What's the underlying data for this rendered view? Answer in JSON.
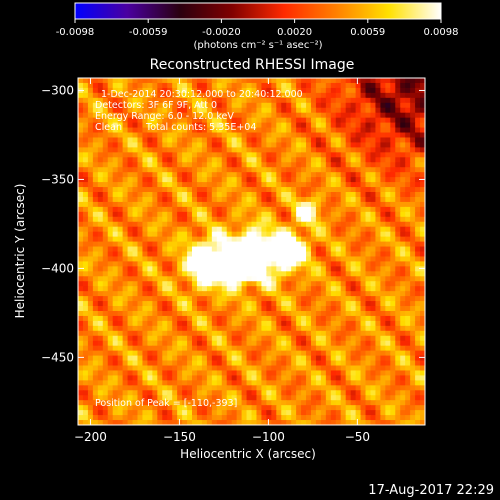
{
  "chart_data": {
    "type": "heatmap",
    "title": "Reconstructed RHESSI Image",
    "xlabel": "Heliocentric X (arcsec)",
    "ylabel": "Heliocentric Y (arcsec)",
    "xlim": [
      -207,
      -12
    ],
    "ylim": [
      -488,
      -293
    ],
    "x_ticks": [
      -200,
      -150,
      -100,
      -50
    ],
    "y_ticks": [
      -300,
      -350,
      -400,
      -450
    ],
    "colorbar": {
      "min": -0.0098,
      "max": 0.0098,
      "ticks": [
        "-0.0098",
        "-0.0059",
        "-0.0020",
        "0.0020",
        "0.0059",
        "0.0098"
      ],
      "units": "(photons cm⁻² s⁻¹ asec⁻²)",
      "colormap": [
        "#0000ff",
        "#4a00a0",
        "#2a0010",
        "#800000",
        "#ff2a00",
        "#ff8000",
        "#ffe000",
        "#ffffff"
      ]
    },
    "annotations": {
      "time_range": "1-Dec-2014 20:30:12.000 to 20:40:12.000",
      "detectors": "Detectors: 3F 6F 9F, Att 0",
      "energy_range": "Energy Range: 6.0 - 12.0 keV",
      "clean": "Clean",
      "total_counts": "Total counts: 5.35E+04",
      "peak_position": "Position of Peak = [-110,-393]"
    },
    "sources": [
      {
        "x": -133,
        "y": -397,
        "sigma": 9,
        "amplitude": 0.0098
      },
      {
        "x": -108,
        "y": -393,
        "sigma": 10,
        "amplitude": 0.0098
      },
      {
        "x": -88,
        "y": -390,
        "sigma": 7,
        "amplitude": 0.0085
      },
      {
        "x": -78,
        "y": -368,
        "sigma": 5,
        "amplitude": 0.006
      },
      {
        "x": -118,
        "y": -398,
        "sigma": 6,
        "amplitude": 0.0075
      }
    ],
    "background_level": 0.0045
  },
  "footer": {
    "date": "17-Aug-2017 22:29"
  }
}
